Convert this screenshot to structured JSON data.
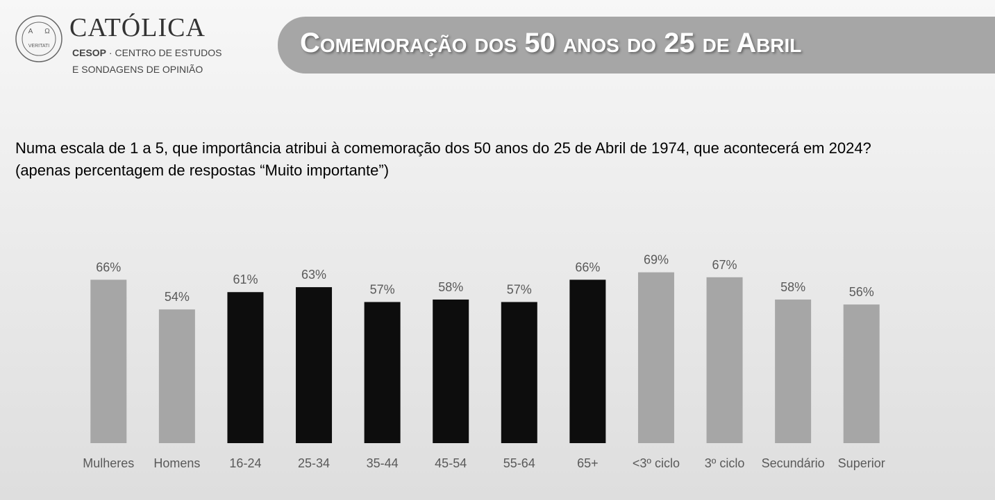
{
  "header": {
    "logo_name": "CATÓLICA",
    "logo_org": "CESOP",
    "logo_line1": "· CENTRO DE ESTUDOS",
    "logo_line2": "E SONDAGENS DE OPINIÃO",
    "seal_left": "A",
    "seal_right": "Ω",
    "seal_motto": "VERITATI",
    "title": "Comemoração dos 50 anos do 25 de Abril"
  },
  "chart_data": {
    "type": "bar",
    "title": "Numa escala de 1 a 5, que importância atribui à comemoração dos 50 anos do 25 de Abril de 1974, que acontecerá em 2024? (apenas percentagem de respostas “Muito importante”)",
    "categories": [
      "Mulheres",
      "Homens",
      "16-24",
      "25-34",
      "35-44",
      "45-54",
      "55-64",
      "65+",
      "<3º ciclo",
      "3º ciclo",
      "Secundário",
      "Superior"
    ],
    "values": [
      66,
      54,
      61,
      63,
      57,
      58,
      57,
      66,
      69,
      67,
      58,
      56
    ],
    "value_labels": [
      "66%",
      "54%",
      "61%",
      "63%",
      "57%",
      "58%",
      "57%",
      "66%",
      "69%",
      "67%",
      "58%",
      "56%"
    ],
    "colors": [
      "#a6a6a6",
      "#a6a6a6",
      "#0d0d0d",
      "#0d0d0d",
      "#0d0d0d",
      "#0d0d0d",
      "#0d0d0d",
      "#0d0d0d",
      "#a6a6a6",
      "#a6a6a6",
      "#a6a6a6",
      "#a6a6a6"
    ],
    "ylim": [
      0,
      100
    ]
  }
}
